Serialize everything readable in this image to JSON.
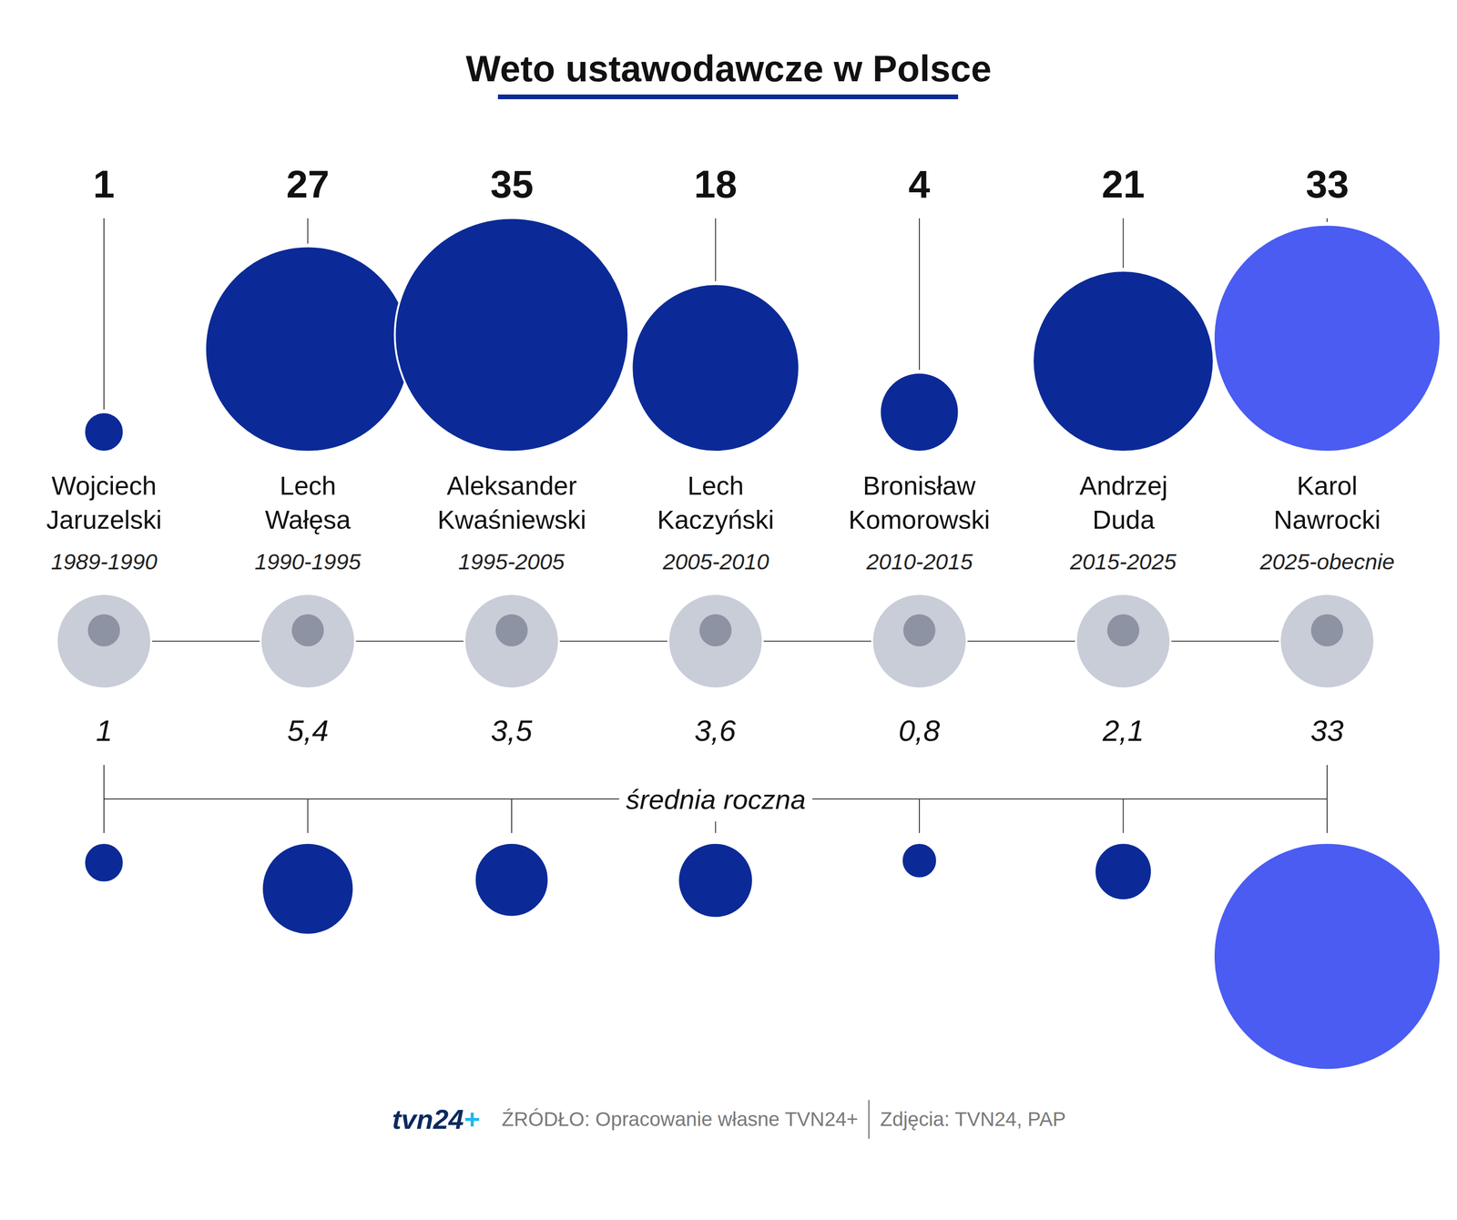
{
  "chart_data": {
    "type": "bubble",
    "title": "Weto ustawodawcze w Polsce",
    "categories": [
      "Wojciech Jaruzelski",
      "Lech Wałęsa",
      "Aleksander Kwaśniewski",
      "Lech Kaczyński",
      "Bronisław Komorowski",
      "Andrzej Duda",
      "Karol Nawrocki"
    ],
    "terms": [
      "1989-1990",
      "1990-1995",
      "1995-2005",
      "2005-2010",
      "2010-2015",
      "2015-2025",
      "2025-obecnie"
    ],
    "series": [
      {
        "values": [
          1,
          27,
          35,
          18,
          4,
          21,
          33
        ],
        "colors": [
          "#0b2a97",
          "#0b2a97",
          "#0b2a97",
          "#0b2a97",
          "#0b2a97",
          "#0b2a97",
          "#4a5cf2"
        ]
      },
      {
        "name": "średnia roczna",
        "values": [
          1,
          5.4,
          3.5,
          3.6,
          0.8,
          2.1,
          33
        ],
        "value_labels": [
          "1",
          "5,4",
          "3,5",
          "3,6",
          "0,8",
          "2,1",
          "33"
        ],
        "colors": [
          "#0b2a97",
          "#0b2a97",
          "#0b2a97",
          "#0b2a97",
          "#0b2a97",
          "#0b2a97",
          "#4a5cf2"
        ]
      }
    ],
    "data_labels": true,
    "tick_labels": false,
    "source": "ŹRÓDŁO: Opracowanie własne TVN24+",
    "credits": "Zdjęcia: TVN24, PAP",
    "logo": "tvn24+"
  }
}
